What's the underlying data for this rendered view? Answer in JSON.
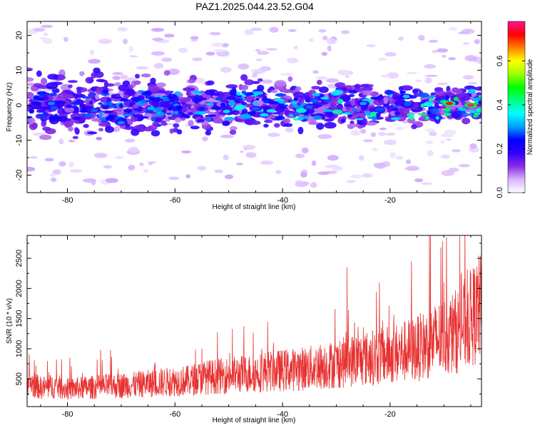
{
  "chart_data": [
    {
      "type": "heatmap",
      "title": "PAZ1.2025.044.23.52.G04",
      "xlabel": "Height of straight line (km)",
      "ylabel": "Frequency (Hz)",
      "xlim": [
        -87.5,
        -3
      ],
      "ylim": [
        -25,
        24
      ],
      "xticks": [
        -80,
        -60,
        -40,
        -20
      ],
      "yticks": [
        -20,
        -10,
        0,
        10,
        20
      ],
      "colorbar": {
        "label": "Normalized spectral amplitude",
        "range": [
          0,
          0.78
        ],
        "ticks": [
          "0.0",
          "0.2",
          "0.4",
          "0.6"
        ],
        "tick_values": [
          0.0,
          0.2,
          0.4,
          0.6
        ],
        "colors": [
          "#ffffff",
          "#d7b4ff",
          "#8a2be2",
          "#3300ff",
          "#0000ff",
          "#00a0ff",
          "#00ffff",
          "#00ff80",
          "#00ff00",
          "#a0ff00",
          "#ffff00",
          "#ff8000",
          "#ff0000",
          "#ff1493"
        ]
      },
      "features": [
        {
          "x": -83,
          "y": 0.5,
          "amplitude": 0.3
        },
        {
          "x": -75,
          "y": -1.5,
          "amplitude": 0.28
        },
        {
          "x": -70,
          "y": -5,
          "amplitude": 0.3
        },
        {
          "x": -55,
          "y": -1,
          "amplitude": 0.25
        },
        {
          "x": -45,
          "y": -1,
          "amplitude": 0.28
        },
        {
          "x": -35,
          "y": -0.5,
          "amplitude": 0.28
        },
        {
          "x": -25,
          "y": 0.5,
          "amplitude": 0.32
        },
        {
          "x": -17,
          "y": 2.5,
          "amplitude": 0.34
        },
        {
          "x": -10,
          "y": 1,
          "amplitude": 0.45
        },
        {
          "x": -9,
          "y": 0.5,
          "amplitude": 0.72
        },
        {
          "x": -5,
          "y": 0,
          "amplitude": 0.78
        }
      ]
    },
    {
      "type": "line",
      "xlabel": "Height of straight line (km)",
      "ylabel": "SNR (10 * v/v)",
      "xlim": [
        -87.5,
        -3
      ],
      "ylim": [
        40,
        2880
      ],
      "xticks": [
        -80,
        -60,
        -40,
        -20
      ],
      "yticks": [
        500,
        1000,
        1500,
        2000,
        2500
      ],
      "color": "#e83030",
      "series": [
        {
          "x": [
            -87.5,
            -85,
            -82.5,
            -80,
            -77.5,
            -75,
            -72.5,
            -70,
            -67.5,
            -65,
            -62.5,
            -60,
            -57.5,
            -55,
            -52.5,
            -50,
            -47.5,
            -45,
            -42.5,
            -40,
            -37.5,
            -35,
            -32.5,
            -30,
            -27.5,
            -25,
            -22.5,
            -20,
            -17.5,
            -15,
            -12.5,
            -10,
            -7.5,
            -5,
            -3
          ],
          "values": [
            450,
            350,
            380,
            330,
            350,
            360,
            380,
            390,
            400,
            420,
            440,
            460,
            470,
            520,
            540,
            560,
            580,
            600,
            630,
            640,
            660,
            680,
            720,
            740,
            800,
            830,
            860,
            900,
            950,
            1000,
            1100,
            1200,
            1300,
            1500,
            1700
          ]
        }
      ],
      "peaks": [
        {
          "x": -72,
          "y": 980
        },
        {
          "x": -55,
          "y": 1000
        },
        {
          "x": -28,
          "y": 2350
        },
        {
          "x": -22,
          "y": 2100
        },
        {
          "x": -16,
          "y": 2450
        },
        {
          "x": -12.5,
          "y": 2880
        },
        {
          "x": -10,
          "y": 2100
        },
        {
          "x": -4,
          "y": 2200
        }
      ]
    }
  ]
}
